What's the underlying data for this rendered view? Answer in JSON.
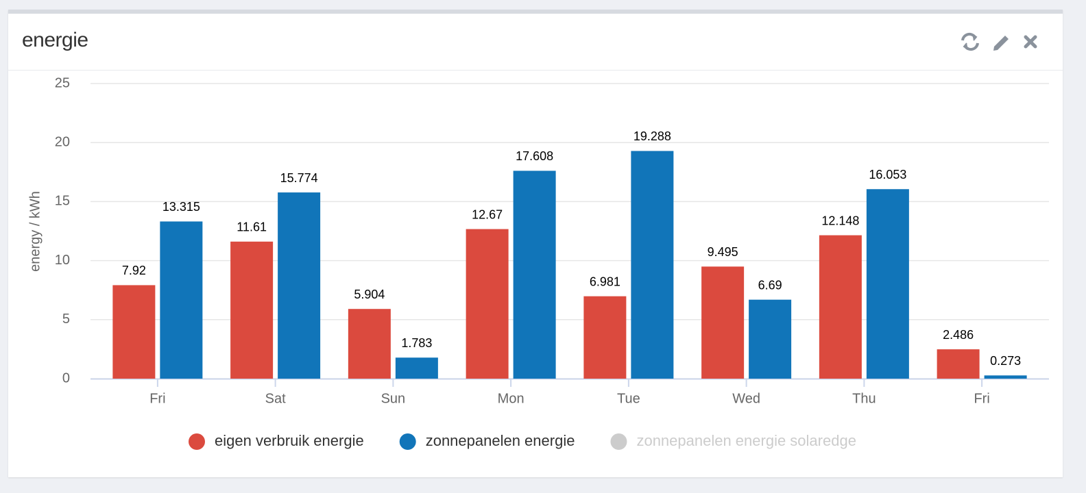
{
  "widget": {
    "title": "energie"
  },
  "chart_data": {
    "type": "bar",
    "y_label": "energy / kWh",
    "categories": [
      "Fri",
      "Sat",
      "Sun",
      "Mon",
      "Tue",
      "Wed",
      "Thu",
      "Fri"
    ],
    "series": [
      {
        "name": "eigen verbruik energie",
        "color": "#db4a3e",
        "values": [
          7.92,
          11.61,
          5.904,
          12.67,
          6.981,
          9.495,
          12.148,
          2.486
        ]
      },
      {
        "name": "zonnepanelen energie",
        "color": "#1175b9",
        "values": [
          13.315,
          15.774,
          1.783,
          17.608,
          19.288,
          6.69,
          16.053,
          0.273
        ]
      },
      {
        "name": "zonnepanelen energie solaredge",
        "color": "#cccccc",
        "visible": false,
        "values": [
          null,
          null,
          null,
          null,
          null,
          null,
          null,
          null
        ]
      }
    ],
    "ylim": [
      0,
      25
    ],
    "yticks": [
      0,
      5,
      10,
      15,
      20,
      25
    ],
    "grid": true,
    "data_labels": true,
    "legend": "bottom"
  }
}
